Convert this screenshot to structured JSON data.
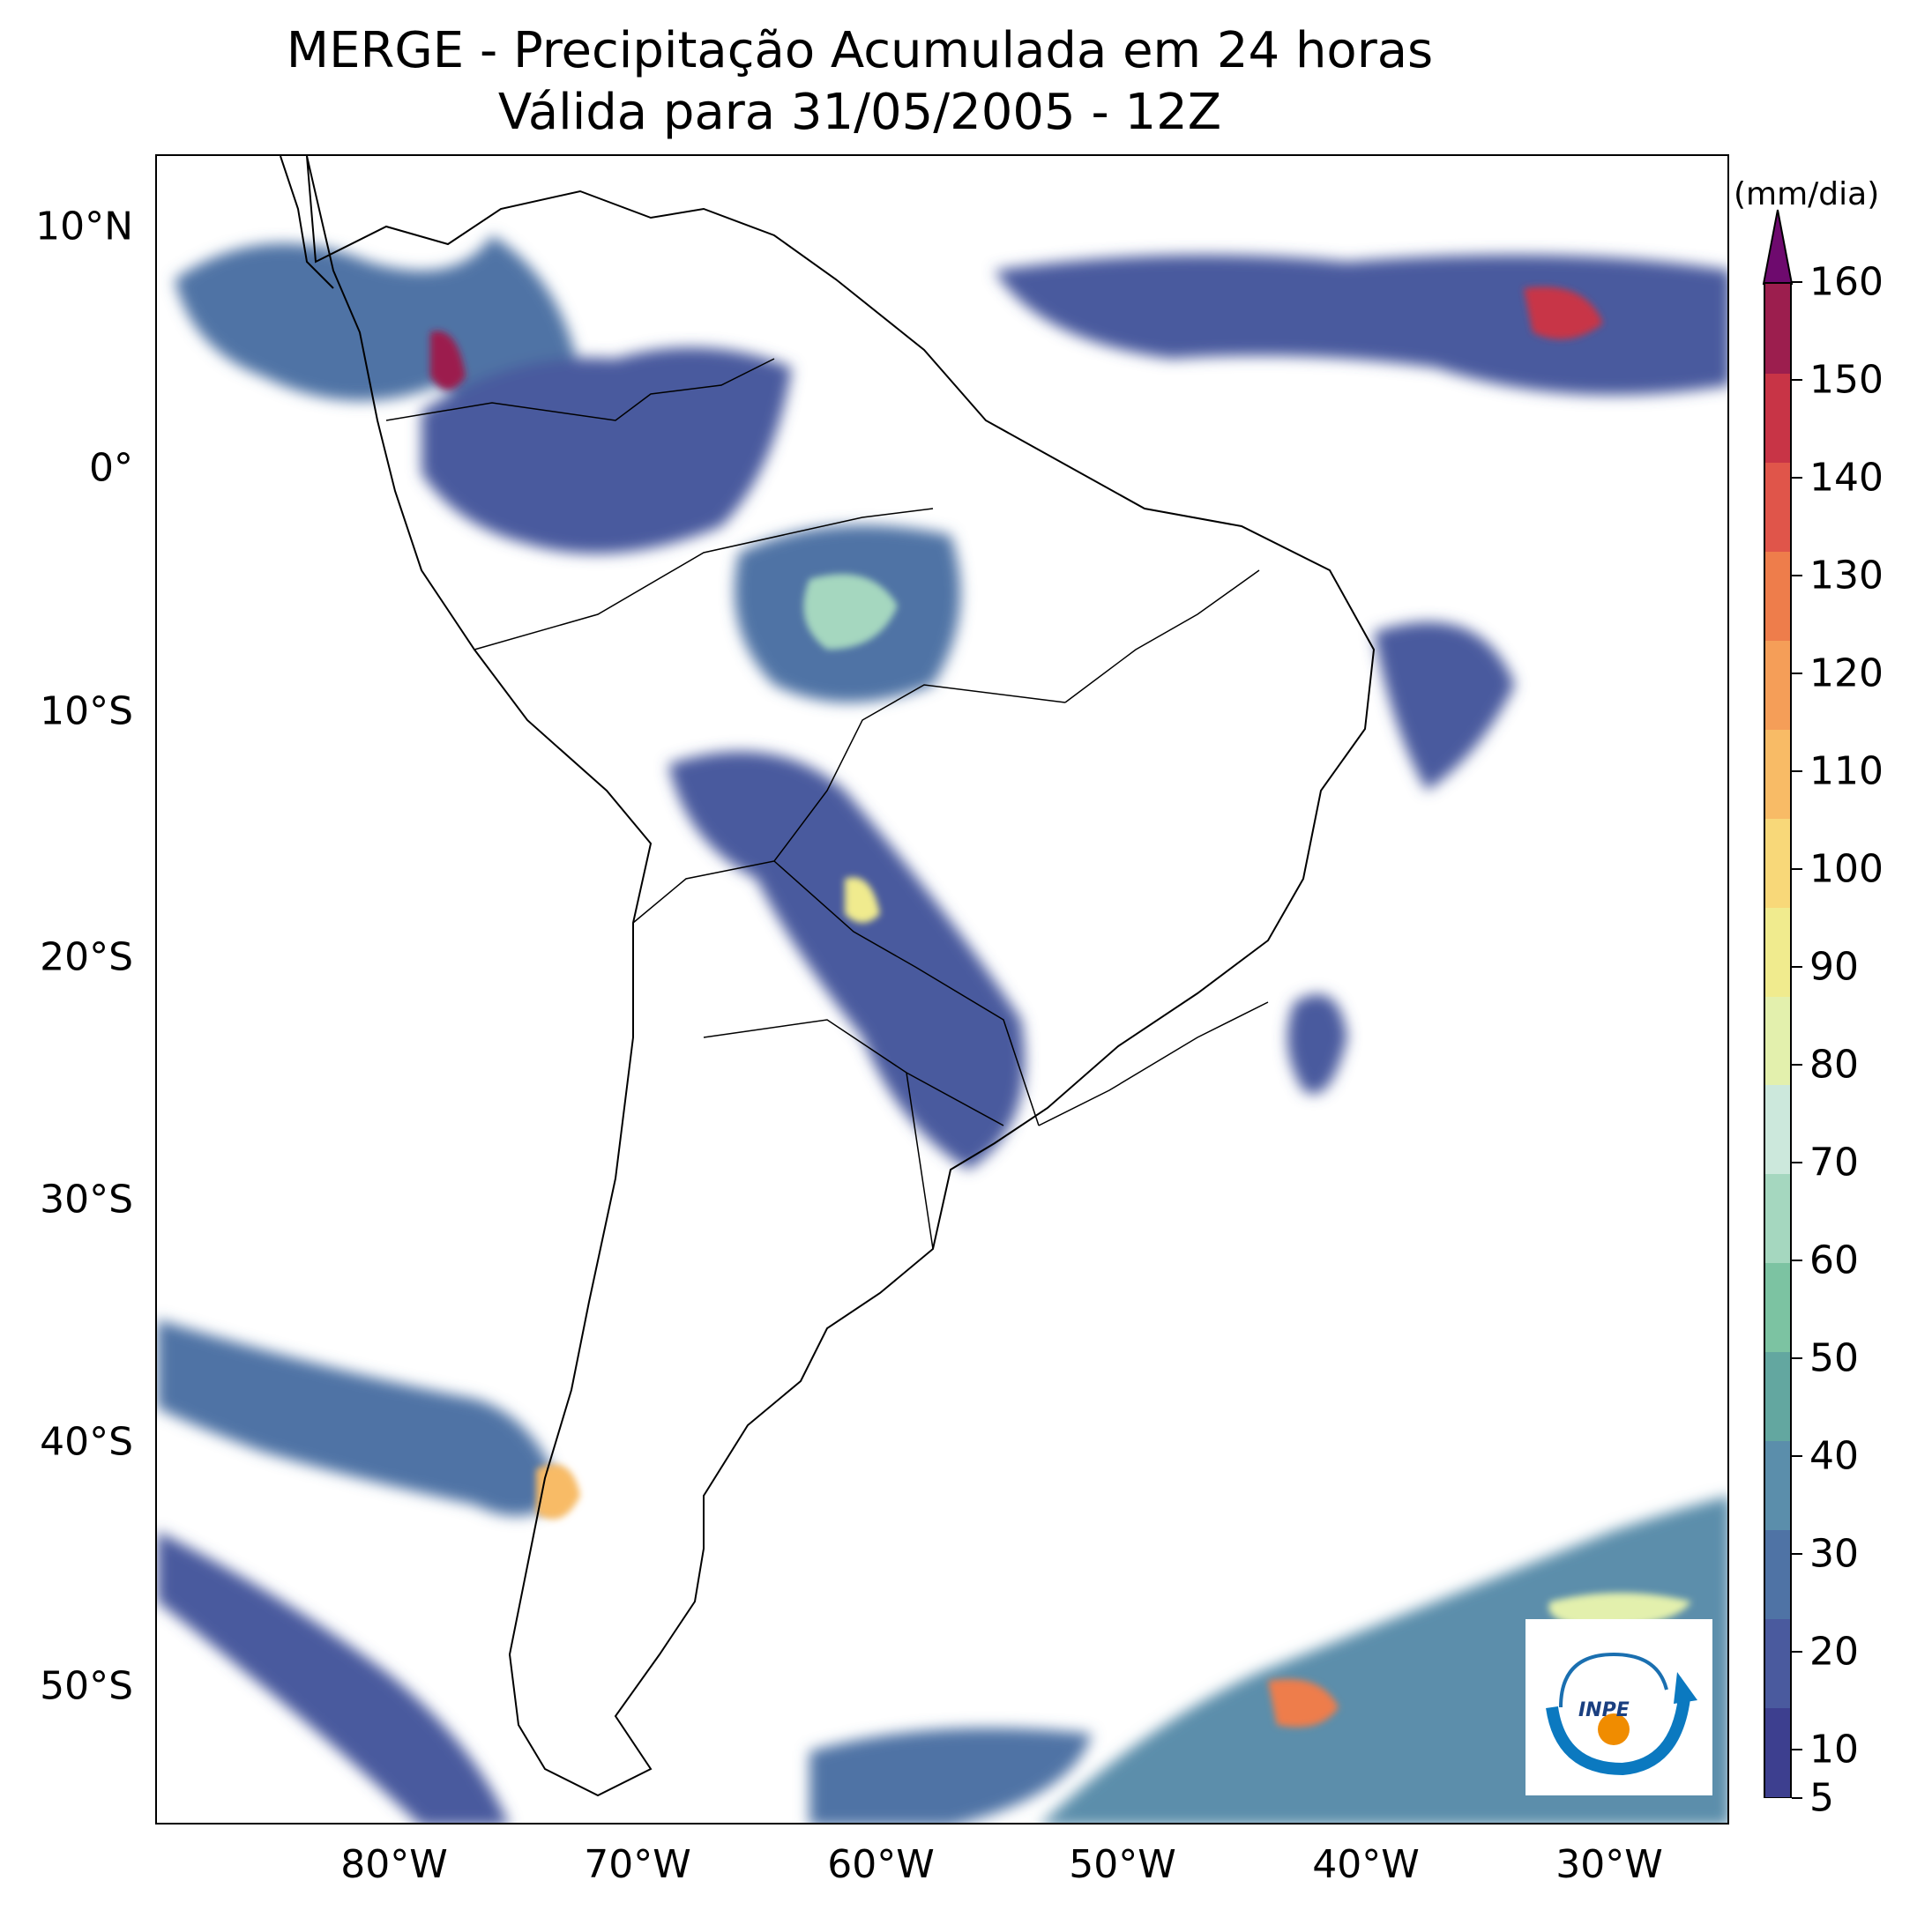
{
  "title": {
    "line1": "MERGE - Precipitação Acumulada em 24 horas",
    "line2": "Válida para 31/05/2005 - 12Z"
  },
  "axes": {
    "lat_labels": [
      "10°N",
      "0°",
      "10°S",
      "20°S",
      "30°S",
      "40°S",
      "50°S"
    ],
    "lon_labels": [
      "80°W",
      "70°W",
      "60°W",
      "50°W",
      "40°W",
      "30°W"
    ]
  },
  "colorbar": {
    "unit": "(mm/dia)",
    "ticks": [
      "5",
      "10",
      "20",
      "30",
      "40",
      "50",
      "60",
      "70",
      "80",
      "90",
      "100",
      "110",
      "120",
      "130",
      "140",
      "150",
      "160"
    ],
    "colors": [
      "#3d3f8f",
      "#4a5a9e",
      "#4f73a5",
      "#5b8eab",
      "#63a7a0",
      "#7cc3a2",
      "#a5d7bf",
      "#cce8dc",
      "#e3f0ad",
      "#f0eb8e",
      "#f8d879",
      "#f8bb66",
      "#f59e58",
      "#ee7d4b",
      "#e0554a",
      "#c83446",
      "#9c1e4e",
      "#6e0a6e"
    ]
  },
  "logo": {
    "text": "INPE",
    "name": "inpe-logo"
  }
}
